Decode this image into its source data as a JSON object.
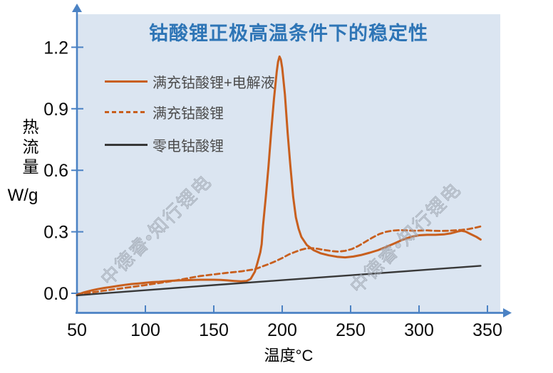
{
  "title": {
    "text": "钴酸锂正极高温条件下的稳定性",
    "color": "#2E75B6"
  },
  "axes": {
    "x": {
      "label": "温度°C",
      "ticks": [
        "50",
        "100",
        "150",
        "200",
        "250",
        "300",
        "350"
      ]
    },
    "y": {
      "title": "热流量",
      "unit": "W/g",
      "ticks": [
        "0.0",
        "0.3",
        "0.6",
        "0.9",
        "1.2"
      ]
    }
  },
  "watermark": {
    "text": "中德睿•知行锂电"
  },
  "colors": {
    "axis": "#4B82C4",
    "plot_background": "#DBE5F1",
    "tick_label": "#0A0A0A"
  },
  "chart_data": {
    "type": "line",
    "title": "钴酸锂正极高温条件下的稳定性",
    "xlabel": "温度°C",
    "ylabel": "热流量 W/g",
    "xlim": [
      50,
      360
    ],
    "ylim": [
      -0.11,
      1.36
    ],
    "x_ticks": [
      50,
      100,
      150,
      200,
      250,
      300,
      350
    ],
    "y_ticks": [
      0.0,
      0.3,
      0.6,
      0.9,
      1.2
    ],
    "grid": false,
    "legend_position": "upper-left-inside",
    "series": [
      {
        "name": "满充钴酸锂+电解液",
        "style": "solid",
        "color": "#C85F1E",
        "width": 3,
        "points": [
          [
            50,
            -0.008
          ],
          [
            55,
            0.004
          ],
          [
            60,
            0.013
          ],
          [
            65,
            0.02
          ],
          [
            70,
            0.026
          ],
          [
            75,
            0.031
          ],
          [
            80,
            0.036
          ],
          [
            85,
            0.041
          ],
          [
            90,
            0.045
          ],
          [
            95,
            0.048
          ],
          [
            100,
            0.051
          ],
          [
            105,
            0.054
          ],
          [
            110,
            0.056
          ],
          [
            115,
            0.059
          ],
          [
            120,
            0.061
          ],
          [
            125,
            0.063
          ],
          [
            130,
            0.064
          ],
          [
            135,
            0.065
          ],
          [
            140,
            0.066
          ],
          [
            145,
            0.066
          ],
          [
            150,
            0.066
          ],
          [
            155,
            0.065
          ],
          [
            160,
            0.063
          ],
          [
            165,
            0.06
          ],
          [
            170,
            0.058
          ],
          [
            174,
            0.06
          ],
          [
            177,
            0.07
          ],
          [
            180,
            0.105
          ],
          [
            182,
            0.15
          ],
          [
            184,
            0.2
          ],
          [
            185,
            0.24
          ],
          [
            186,
            0.33
          ],
          [
            188,
            0.47
          ],
          [
            190,
            0.62
          ],
          [
            192,
            0.79
          ],
          [
            194,
            0.95
          ],
          [
            196,
            1.08
          ],
          [
            197,
            1.13
          ],
          [
            198,
            1.155
          ],
          [
            199,
            1.14
          ],
          [
            200,
            1.1
          ],
          [
            202,
            0.97
          ],
          [
            204,
            0.78
          ],
          [
            206,
            0.62
          ],
          [
            208,
            0.47
          ],
          [
            210,
            0.37
          ],
          [
            212,
            0.315
          ],
          [
            214,
            0.275
          ],
          [
            218,
            0.235
          ],
          [
            223,
            0.21
          ],
          [
            228,
            0.195
          ],
          [
            234,
            0.185
          ],
          [
            240,
            0.178
          ],
          [
            246,
            0.175
          ],
          [
            252,
            0.179
          ],
          [
            258,
            0.187
          ],
          [
            264,
            0.198
          ],
          [
            270,
            0.21
          ],
          [
            276,
            0.226
          ],
          [
            282,
            0.243
          ],
          [
            288,
            0.261
          ],
          [
            294,
            0.275
          ],
          [
            300,
            0.283
          ],
          [
            306,
            0.285
          ],
          [
            312,
            0.285
          ],
          [
            318,
            0.287
          ],
          [
            323,
            0.292
          ],
          [
            328,
            0.301
          ],
          [
            331,
            0.305
          ],
          [
            334,
            0.301
          ],
          [
            338,
            0.288
          ],
          [
            342,
            0.275
          ],
          [
            345,
            0.262
          ]
        ]
      },
      {
        "name": "满充钴酸锂",
        "style": "dashed",
        "color": "#C85F1E",
        "width": 2.8,
        "points": [
          [
            50,
            -0.01
          ],
          [
            60,
            0.003
          ],
          [
            70,
            0.013
          ],
          [
            80,
            0.022
          ],
          [
            90,
            0.031
          ],
          [
            100,
            0.04
          ],
          [
            110,
            0.05
          ],
          [
            120,
            0.06
          ],
          [
            130,
            0.072
          ],
          [
            140,
            0.084
          ],
          [
            150,
            0.092
          ],
          [
            160,
            0.1
          ],
          [
            170,
            0.107
          ],
          [
            180,
            0.117
          ],
          [
            185,
            0.13
          ],
          [
            190,
            0.142
          ],
          [
            195,
            0.156
          ],
          [
            200,
            0.172
          ],
          [
            205,
            0.19
          ],
          [
            210,
            0.203
          ],
          [
            214,
            0.213
          ],
          [
            218,
            0.219
          ],
          [
            222,
            0.22
          ],
          [
            226,
            0.217
          ],
          [
            231,
            0.211
          ],
          [
            236,
            0.206
          ],
          [
            241,
            0.203
          ],
          [
            246,
            0.207
          ],
          [
            251,
            0.216
          ],
          [
            256,
            0.232
          ],
          [
            261,
            0.252
          ],
          [
            266,
            0.272
          ],
          [
            271,
            0.289
          ],
          [
            276,
            0.3
          ],
          [
            281,
            0.306
          ],
          [
            286,
            0.308
          ],
          [
            291,
            0.307
          ],
          [
            296,
            0.305
          ],
          [
            301,
            0.306
          ],
          [
            306,
            0.307
          ],
          [
            311,
            0.305
          ],
          [
            316,
            0.304
          ],
          [
            321,
            0.305
          ],
          [
            326,
            0.307
          ],
          [
            331,
            0.309
          ],
          [
            336,
            0.313
          ],
          [
            340,
            0.318
          ],
          [
            345,
            0.326
          ]
        ]
      },
      {
        "name": "零电钴酸锂",
        "style": "solid",
        "color": "#383838",
        "width": 2.4,
        "points": [
          [
            50,
            -0.01
          ],
          [
            100,
            0.015
          ],
          [
            150,
            0.04
          ],
          [
            200,
            0.064
          ],
          [
            250,
            0.088
          ],
          [
            300,
            0.112
          ],
          [
            345,
            0.134
          ]
        ]
      }
    ]
  }
}
